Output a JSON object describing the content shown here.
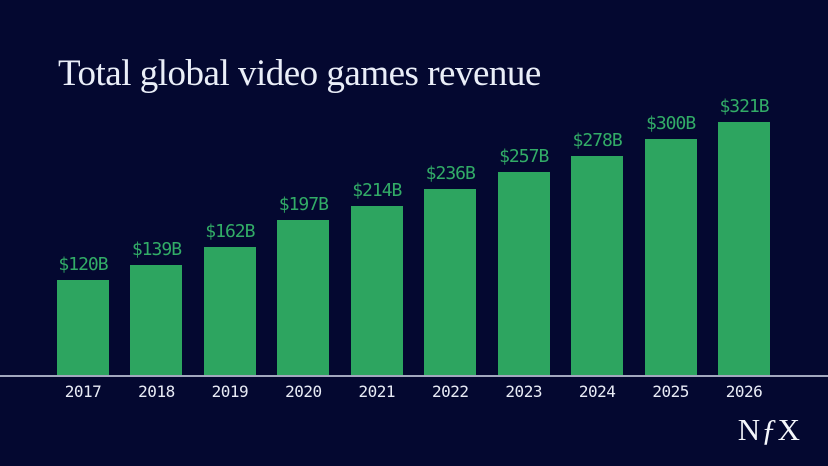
{
  "page": {
    "background": "#040830"
  },
  "title": {
    "text": "Total global video games revenue",
    "color": "#EAEEF8"
  },
  "chart_data": {
    "type": "bar",
    "title": "Total global video games revenue",
    "categories": [
      "2017",
      "2018",
      "2019",
      "2020",
      "2021",
      "2022",
      "2023",
      "2024",
      "2025",
      "2026"
    ],
    "values": [
      120,
      139,
      162,
      197,
      214,
      236,
      257,
      278,
      300,
      321
    ],
    "value_labels": [
      "$120B",
      "$139B",
      "$162B",
      "$197B",
      "$214B",
      "$236B",
      "$257B",
      "$278B",
      "$300B",
      "$321B"
    ],
    "xlabel": "",
    "ylabel": "",
    "ylim": [
      0,
      321
    ],
    "grid": false,
    "legend": false,
    "bar_color": "#2DA560",
    "value_label_color": "#32AC67",
    "axis_line_color": "#A2A8BE",
    "tick_label_color": "#E8EBF5"
  },
  "logo": {
    "letter_n": "N",
    "letter_f": "ƒ",
    "letter_x": "X",
    "color": "#F5F7FC"
  }
}
